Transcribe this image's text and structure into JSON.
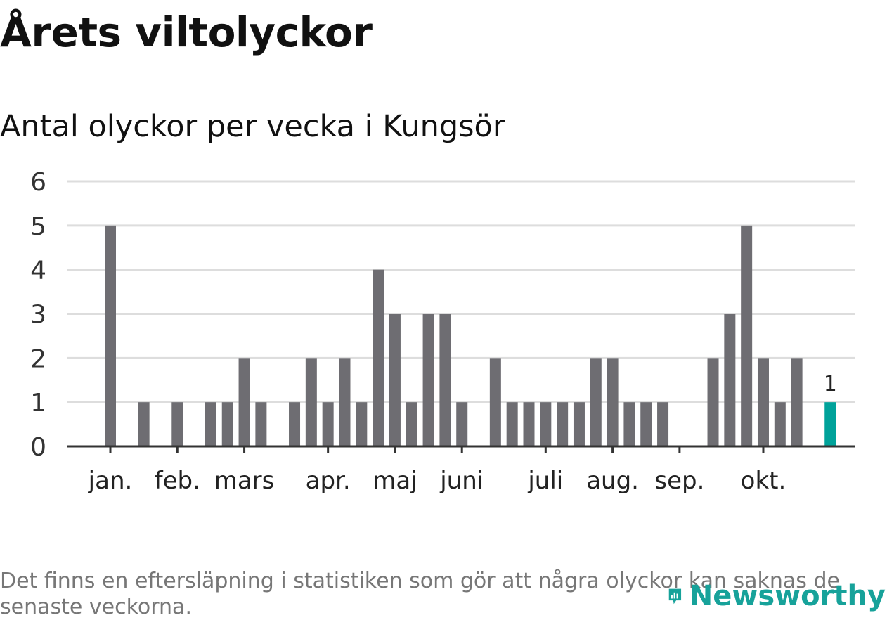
{
  "title": "Årets viltolyckor",
  "subtitle": "Antal olyckor per vecka i Kungsör",
  "note": "Det finns en eftersläpning i statistiken som gör att några olyckor kan saknas de senaste veckorna.",
  "logo": {
    "text": "Newsworthy",
    "icon": "newsworthy-logo-icon",
    "color": "#17a29a"
  },
  "chart_data": {
    "type": "bar",
    "title": "Antal olyckor per vecka i Kungsör",
    "xlabel": "",
    "ylabel": "",
    "ylim": [
      0,
      6
    ],
    "yticks": [
      0,
      1,
      2,
      3,
      4,
      5,
      6
    ],
    "grid": true,
    "bar_color": "#6e6d72",
    "highlight_color": "#00a29a",
    "highlight_index": 43,
    "highlight_label": "1",
    "values": [
      5,
      0,
      1,
      0,
      1,
      0,
      1,
      1,
      2,
      1,
      0,
      1,
      2,
      1,
      2,
      1,
      4,
      3,
      1,
      3,
      3,
      1,
      0,
      2,
      1,
      1,
      1,
      1,
      1,
      2,
      2,
      1,
      1,
      1,
      0,
      0,
      2,
      3,
      5,
      2,
      1,
      2,
      0,
      1
    ],
    "month_labels": [
      {
        "label": "jan.",
        "week": 0
      },
      {
        "label": "feb.",
        "week": 4
      },
      {
        "label": "mars",
        "week": 8
      },
      {
        "label": "apr.",
        "week": 13
      },
      {
        "label": "maj",
        "week": 17
      },
      {
        "label": "juni",
        "week": 21
      },
      {
        "label": "juli",
        "week": 26
      },
      {
        "label": "aug.",
        "week": 30
      },
      {
        "label": "sep.",
        "week": 34
      },
      {
        "label": "okt.",
        "week": 39
      }
    ]
  }
}
